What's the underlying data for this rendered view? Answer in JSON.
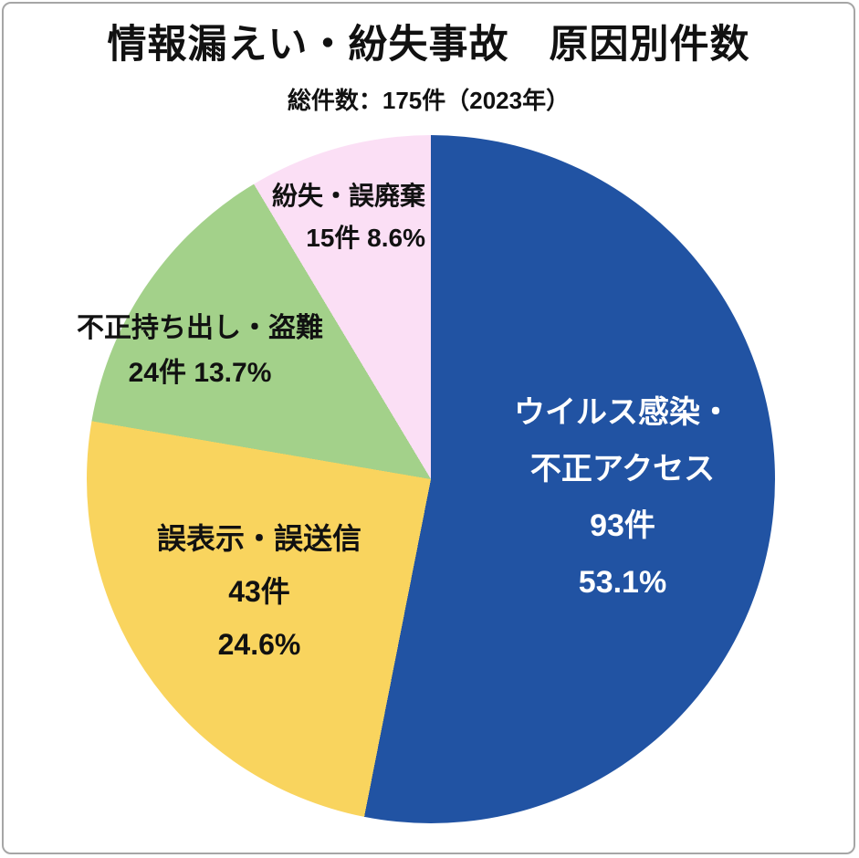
{
  "chart_data": {
    "type": "pie",
    "title": "情報漏えい・紛失事故　原因別件数",
    "subtitle": "総件数：175件（2023年）",
    "total_count": 175,
    "year": "2023年",
    "unit": "件",
    "start_angle_deg": 0,
    "direction": "clockwise",
    "slices": [
      {
        "name": "ウイルス感染・不正アクセス",
        "value": 93,
        "pct": 53.1,
        "color": "#2153a3",
        "text_color": "#ffffff",
        "label_lines": [
          "ウイルス感染・",
          "不正アクセス",
          "93件",
          "53.1%"
        ]
      },
      {
        "name": "誤表示・誤送信",
        "value": 43,
        "pct": 24.6,
        "color": "#f9d45e",
        "text_color": "#111111",
        "label_lines": [
          "誤表示・誤送信",
          "43件",
          "24.6%"
        ]
      },
      {
        "name": "不正持ち出し・盗難",
        "value": 24,
        "pct": 13.7,
        "color": "#a3d18a",
        "text_color": "#111111",
        "label_lines": [
          "不正持ち出し・盗難",
          "24件 13.7%"
        ]
      },
      {
        "name": "紛失・誤廃棄",
        "value": 15,
        "pct": 8.6,
        "color": "#fbdff5",
        "text_color": "#111111",
        "label_lines": [
          "紛失・誤廃棄",
          "15件 8.6%"
        ]
      }
    ]
  },
  "canvas": {
    "background": "#ffffff",
    "border_color": "#a6a6a6"
  }
}
